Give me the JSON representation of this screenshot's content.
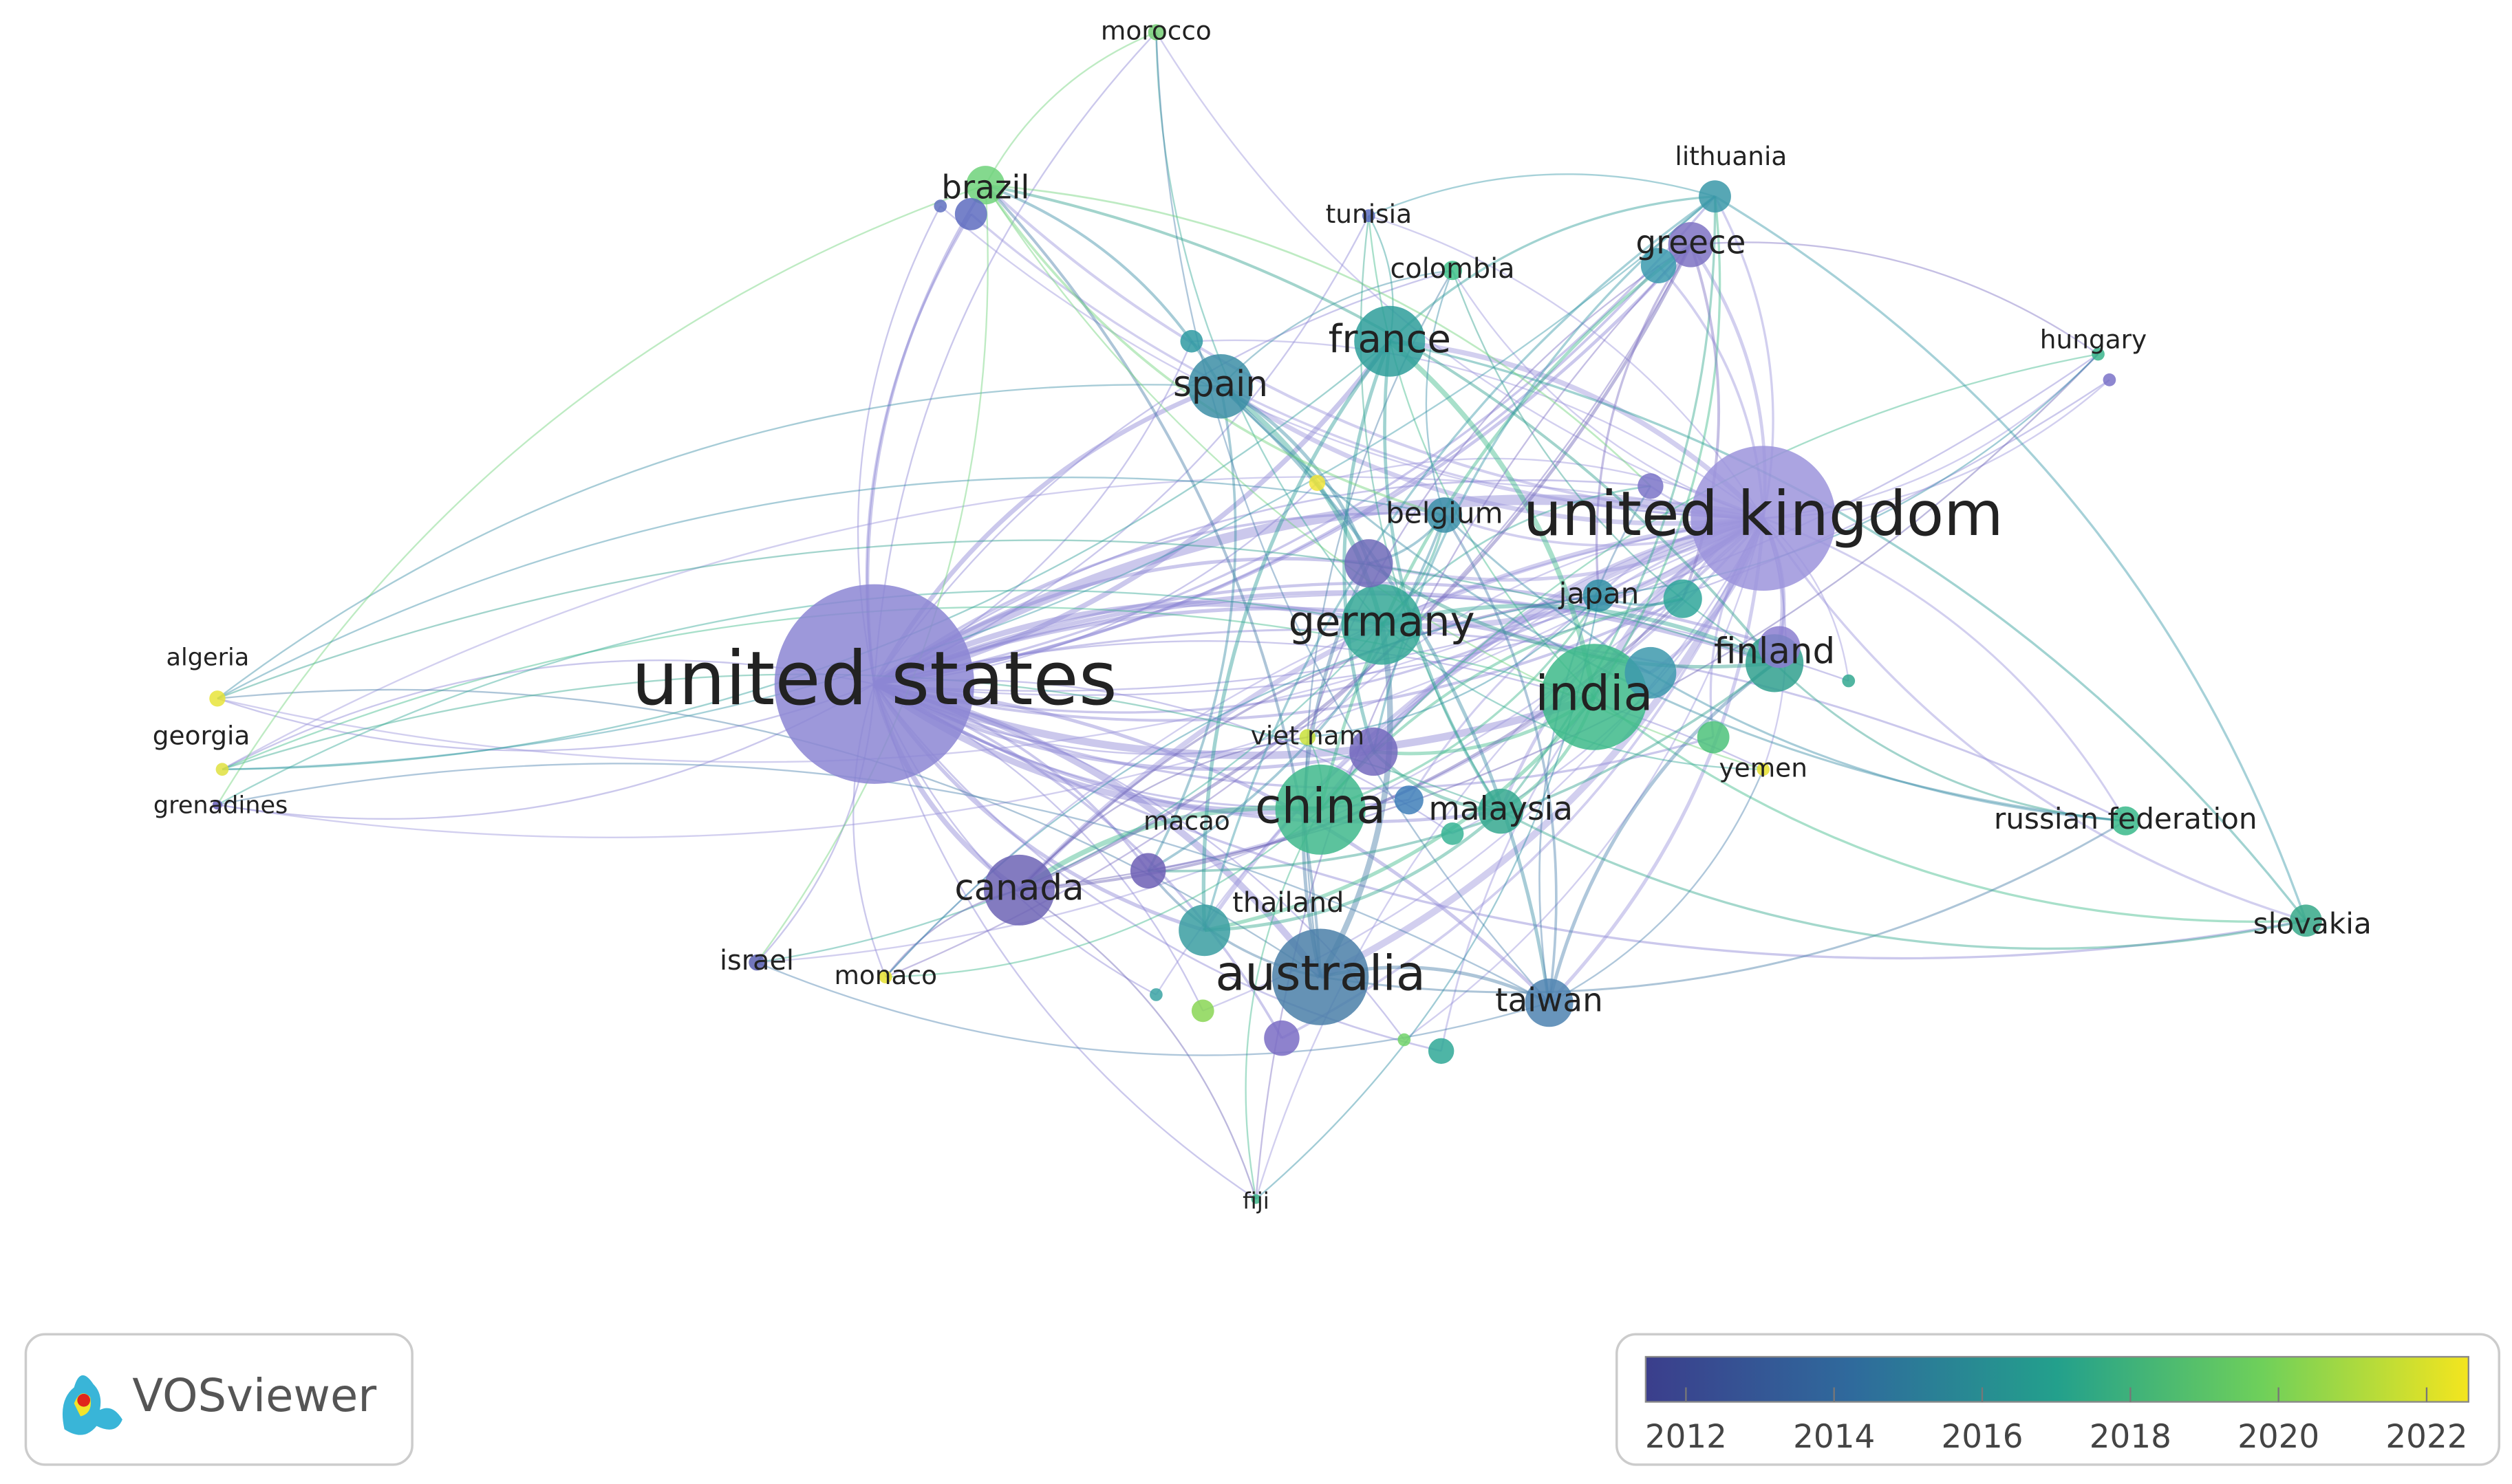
{
  "nodes": [
    {
      "label": "united states"
    },
    {
      "label": "united kingdom"
    },
    {
      "label": "india"
    },
    {
      "label": "australia"
    },
    {
      "label": "china"
    },
    {
      "label": "germany"
    },
    {
      "label": "france"
    },
    {
      "label": "spain"
    },
    {
      "label": "canada"
    },
    {
      "label": "taiwan"
    },
    {
      "label": "malaysia"
    },
    {
      "label": "finland"
    },
    {
      "label": "greece"
    },
    {
      "label": "brazil"
    },
    {
      "label": "lithuania"
    },
    {
      "label": "belgium"
    },
    {
      "label": "japan"
    },
    {
      "label": "colombia"
    },
    {
      "label": "tunisia"
    },
    {
      "label": "morocco"
    },
    {
      "label": "hungary"
    },
    {
      "label": "russian federation"
    },
    {
      "label": "slovakia"
    },
    {
      "label": "yemen"
    },
    {
      "label": "viet nam"
    },
    {
      "label": "macao"
    },
    {
      "label": "thailand"
    },
    {
      "label": "israel"
    },
    {
      "label": "monaco"
    },
    {
      "label": "algeria"
    },
    {
      "label": "georgia"
    },
    {
      "label": "grenadines"
    },
    {
      "label": "fiji"
    }
  ],
  "legend": {
    "logo_text": "VOSviewer",
    "ticks": [
      "2012",
      "2014",
      "2016",
      "2018",
      "2020",
      "2022"
    ]
  }
}
